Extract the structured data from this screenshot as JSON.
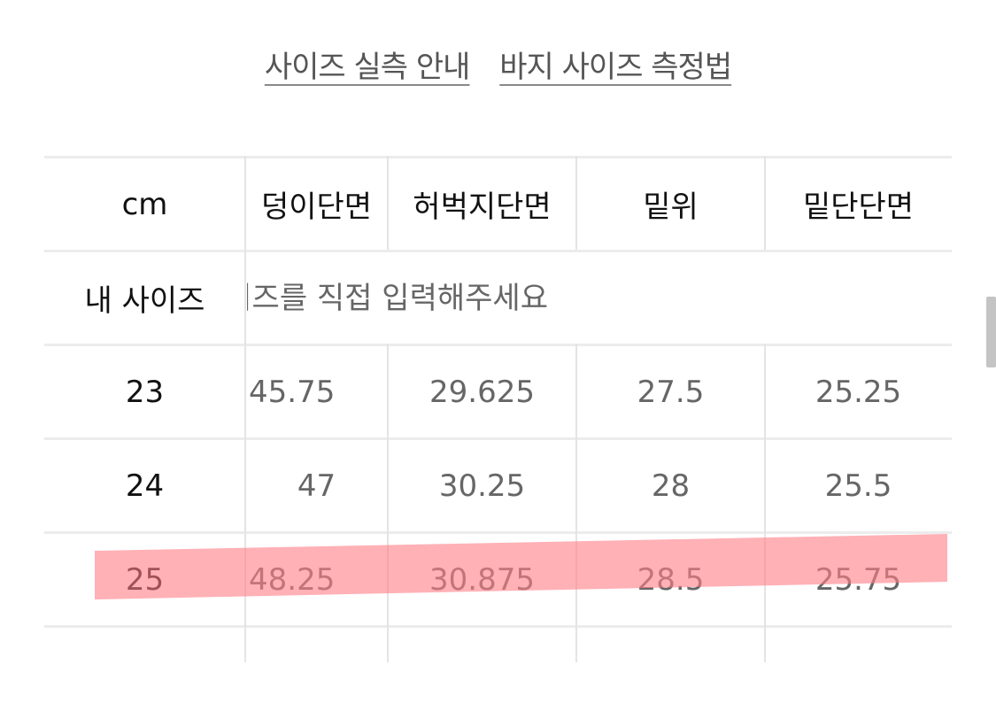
{
  "links": {
    "size_guide": "사이즈 실측 안내",
    "measure_guide": "바지 사이즈 측정법"
  },
  "table": {
    "headers": [
      "cm",
      "덩이단면",
      "허벅지단면",
      "밑위",
      "밑단단면"
    ],
    "my_size": {
      "label": "내 사이즈",
      "placeholder": "사이즈를 직접 입력해주세요"
    },
    "rows": [
      [
        "23",
        "45.75",
        "29.625",
        "27.5",
        "25.25"
      ],
      [
        "24",
        "47",
        "30.25",
        "28",
        "25.5"
      ],
      [
        "25",
        "48.25",
        "30.875",
        "28.5",
        "25.75"
      ]
    ],
    "highlighted_row": "25"
  },
  "colors": {
    "highlight": "#ff8f95",
    "grid": "#e4e4e4",
    "text": "#111111",
    "value_text": "#666666"
  }
}
